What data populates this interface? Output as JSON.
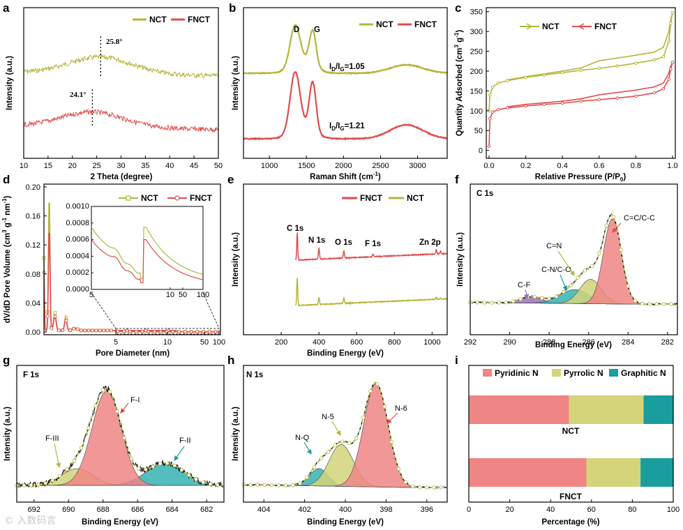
{
  "colors": {
    "nct": "#b5b53a",
    "fnct": "#e04c4c",
    "graphitic": "#1a9d9d",
    "cf": "#9a72c0",
    "fill_red": "#ef8585",
    "fill_olive": "#d4d47a",
    "fill_teal": "#36b3b3",
    "dark": "#2e2e2e"
  },
  "watermark": "© 入数码言",
  "panels": {
    "a": {
      "label": "a",
      "title": "",
      "xlabel": "2 Theta (degree)",
      "ylabel": "Intensity (a.u.)",
      "legend": [
        "NCT",
        "FNCT"
      ],
      "ann_nct": "25.8°",
      "ann_fnct": "24.1°",
      "xticks": [
        "10",
        "15",
        "20",
        "25",
        "30",
        "35",
        "40",
        "45",
        "50"
      ]
    },
    "b": {
      "label": "b",
      "xlabel": "Raman Shift (cm",
      "xlabel_sup": "-1",
      "xlabel_end": ")",
      "ylabel": "Intensity (a.u.)",
      "legend": [
        "NCT",
        "FNCT"
      ],
      "peak_d": "D",
      "peak_g": "G",
      "ratio_nct": "=1.05",
      "ratio_fnct": "=1.21",
      "ratio_prefix": "I",
      "ratio_sub_d": "D",
      "ratio_sep": "/I",
      "ratio_sub_g": "G",
      "xticks": [
        "1000",
        "1500",
        "2000",
        "2500",
        "3000"
      ]
    },
    "c": {
      "label": "c",
      "xlabel": "Relative Pressure (P/P",
      "xlabel_sub": "0",
      "xlabel_end": ")",
      "ylabel": "Quantity Adsorbed (cm",
      "ylabel_sup": "3",
      "ylabel_mid": " g",
      "ylabel_sup2": "-1",
      "ylabel_end": ")",
      "legend": [
        "NCT",
        "FNCT"
      ],
      "xticks": [
        "0.0",
        "0.2",
        "0.4",
        "0.6",
        "0.8",
        "1.0"
      ],
      "yticks": [
        "0",
        "50",
        "100",
        "150",
        "200",
        "250",
        "300",
        "350"
      ]
    },
    "d": {
      "label": "d",
      "xlabel": "Pore Diameter (nm)",
      "ylabel": "dV/dD Pore Volume (cm",
      "ylabel_sup": "3",
      "ylabel_mid": " g",
      "ylabel_sup2": "-1",
      "ylabel_mid2": " nm",
      "ylabel_sup3": "-1",
      "ylabel_end": ")",
      "legend": [
        "NCT",
        "FNCT"
      ],
      "xticks": [
        "5",
        "10",
        "50",
        "100"
      ],
      "yticks": [
        "0.00",
        "0.04",
        "0.08",
        "0.12",
        "0.16",
        "0.20"
      ],
      "inset_xticks": [
        "5",
        "10",
        "50",
        "100"
      ],
      "inset_yticks": [
        "0.0000",
        "0.0002",
        "0.0004",
        "0.0006",
        "0.0008",
        "0.0010"
      ]
    },
    "e": {
      "label": "e",
      "xlabel": "Binding Energy (eV)",
      "ylabel": "Intensity (a.u.)",
      "legend": [
        "FNCT",
        "NCT"
      ],
      "peaks": [
        "C 1s",
        "N 1s",
        "O 1s",
        "F 1s",
        "Zn 2p"
      ],
      "xticks": [
        "200",
        "400",
        "600",
        "800",
        "1000"
      ]
    },
    "f": {
      "label": "f",
      "title": "C 1s",
      "xlabel": "Binding Energy (eV)",
      "ylabel": "Intensity (a.u.)",
      "peaks": [
        "C=C/C-C",
        "C=N",
        "C-N/C-O",
        "C-F"
      ],
      "xticks": [
        "292",
        "290",
        "288",
        "286",
        "284",
        "282"
      ]
    },
    "g": {
      "label": "g",
      "title": "F 1s",
      "xlabel": "Binding Energy (eV)",
      "ylabel": "Intensity (a.u.)",
      "peaks": [
        "F-I",
        "F-III",
        "F-II"
      ],
      "xticks": [
        "692",
        "690",
        "688",
        "686",
        "684",
        "682"
      ]
    },
    "h": {
      "label": "h",
      "title": "N 1s",
      "xlabel": "Binding Energy (eV)",
      "ylabel": "Intensity (a.u.)",
      "peaks": [
        "N-6",
        "N-5",
        "N-Q"
      ],
      "xticks": [
        "404",
        "402",
        "400",
        "398",
        "396"
      ]
    },
    "i": {
      "label": "i",
      "xlabel": "Percentage (%)",
      "legend": [
        "Pyridinic N",
        "Pyrrolic N",
        "Graphitic N"
      ],
      "xticks": [
        "0",
        "20",
        "40",
        "60",
        "80",
        "100"
      ]
    }
  },
  "chart_data": [
    {
      "panel": "a",
      "type": "line",
      "xlabel": "2 Theta (degree)",
      "ylabel": "Intensity (a.u.)",
      "xlim": [
        10,
        50
      ],
      "series": [
        {
          "name": "NCT",
          "peak_2theta": 25.8
        },
        {
          "name": "FNCT",
          "peak_2theta": 24.1
        }
      ]
    },
    {
      "panel": "b",
      "type": "line",
      "xlabel": "Raman Shift (cm-1)",
      "ylabel": "Intensity (a.u.)",
      "xlim": [
        650,
        3400
      ],
      "series": [
        {
          "name": "NCT",
          "ID_IG": 1.05
        },
        {
          "name": "FNCT",
          "ID_IG": 1.21
        }
      ]
    },
    {
      "panel": "c",
      "type": "line",
      "xlabel": "Relative Pressure (P/P0)",
      "ylabel": "Quantity Adsorbed (cm3 g-1)",
      "xlim": [
        0,
        1
      ],
      "ylim": [
        0,
        360
      ],
      "series": [
        {
          "name": "NCT",
          "x": [
            0.0,
            0.005,
            0.02,
            0.05,
            0.1,
            0.2,
            0.3,
            0.4,
            0.5,
            0.6,
            0.7,
            0.8,
            0.9,
            0.95,
            0.98,
            0.99,
            1.0
          ],
          "adsorption": [
            100,
            140,
            160,
            170,
            176,
            184,
            190,
            196,
            202,
            207,
            213,
            220,
            228,
            236,
            275,
            320,
            348
          ],
          "desorption": [
            null,
            null,
            null,
            null,
            178,
            186,
            193,
            200,
            208,
            226,
            233,
            240,
            248,
            260,
            300,
            330,
            348
          ]
        },
        {
          "name": "FNCT",
          "x": [
            0.0,
            0.005,
            0.02,
            0.05,
            0.1,
            0.2,
            0.3,
            0.4,
            0.5,
            0.6,
            0.7,
            0.8,
            0.9,
            0.95,
            0.98,
            0.99,
            1.0
          ],
          "adsorption": [
            10,
            80,
            97,
            103,
            107,
            112,
            116,
            119,
            124,
            128,
            132,
            137,
            145,
            155,
            180,
            205,
            222
          ],
          "desorption": [
            null,
            null,
            null,
            null,
            110,
            116,
            120,
            124,
            130,
            140,
            146,
            152,
            160,
            170,
            195,
            212,
            222
          ]
        }
      ]
    },
    {
      "panel": "d",
      "type": "line",
      "xlabel": "Pore Diameter (nm)",
      "ylabel": "dV/dD Pore Volume (cm3 g-1 nm-1)",
      "ylim": [
        0,
        0.2
      ],
      "series": [
        {
          "name": "NCT",
          "x": [
            0.5,
            0.6,
            0.8,
            1.0,
            1.2,
            1.5,
            2.0,
            5,
            100
          ],
          "y": [
            0.1,
            0.19,
            0.025,
            0.003,
            0.02,
            0.002,
            0.004,
            0.0008,
            0.0001
          ]
        },
        {
          "name": "FNCT",
          "x": [
            0.5,
            0.6,
            0.8,
            1.0,
            1.2,
            1.5,
            2.0,
            5,
            100
          ],
          "y": [
            0.08,
            0.145,
            0.02,
            0.003,
            0.016,
            0.002,
            0.003,
            0.0007,
            0.0001
          ]
        }
      ]
    },
    {
      "panel": "e",
      "type": "line",
      "xlabel": "Binding Energy (eV)",
      "ylabel": "Intensity (a.u.)",
      "xlim": [
        0,
        1080
      ],
      "series": [
        {
          "name": "FNCT",
          "peaks_eV": [
            285,
            400,
            532,
            687,
            1022
          ]
        },
        {
          "name": "NCT",
          "peaks_eV": [
            285,
            400,
            532
          ]
        }
      ]
    },
    {
      "panel": "f",
      "type": "line",
      "xlabel": "Binding Energy (eV)",
      "ylabel": "Intensity (a.u.)",
      "xlim": [
        292,
        281.5
      ],
      "components": [
        {
          "name": "C=C/C-C",
          "center": 284.8
        },
        {
          "name": "C=N",
          "center": 285.9
        },
        {
          "name": "C-N/C-O",
          "center": 286.7
        },
        {
          "name": "C-F",
          "center": 288.9
        }
      ]
    },
    {
      "panel": "g",
      "type": "line",
      "xlabel": "Binding Energy (eV)",
      "ylabel": "Intensity (a.u.)",
      "xlim": [
        693,
        681
      ],
      "components": [
        {
          "name": "F-I",
          "center": 687.8
        },
        {
          "name": "F-III",
          "center": 689.5
        },
        {
          "name": "F-II",
          "center": 684.4
        }
      ]
    },
    {
      "panel": "h",
      "type": "line",
      "xlabel": "Binding Energy (eV)",
      "ylabel": "Intensity (a.u.)",
      "xlim": [
        405,
        395
      ],
      "components": [
        {
          "name": "N-6",
          "center": 398.5
        },
        {
          "name": "N-5",
          "center": 400.2
        },
        {
          "name": "N-Q",
          "center": 401.3
        }
      ]
    },
    {
      "panel": "i",
      "type": "bar",
      "orientation": "horizontal",
      "stacked": true,
      "xlabel": "Percentage (%)",
      "xlim": [
        0,
        100
      ],
      "categories": [
        "NCT",
        "FNCT"
      ],
      "series": [
        {
          "name": "Pyridinic N",
          "values": [
            49,
            57.5
          ]
        },
        {
          "name": "Pyrrolic N",
          "values": [
            36.5,
            26.5
          ]
        },
        {
          "name": "Graphitic N",
          "values": [
            14.5,
            16
          ]
        }
      ]
    }
  ]
}
